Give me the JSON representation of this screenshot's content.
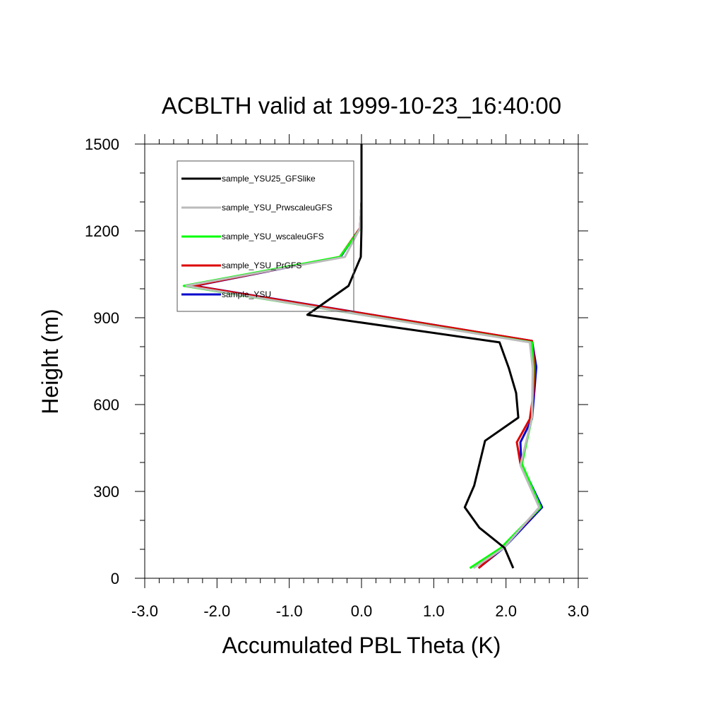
{
  "chart_data": {
    "type": "line",
    "title": "ACBLTH valid at 1999-10-23_16:40:00",
    "xlabel": "Accumulated PBL Theta (K)",
    "ylabel": "Height (m)",
    "xlim": [
      -3.0,
      3.0
    ],
    "ylim": [
      0,
      1500
    ],
    "x_ticks": [
      "-3.0",
      "-2.0",
      "-1.0",
      "0.0",
      "1.0",
      "2.0",
      "3.0"
    ],
    "y_ticks": [
      "0",
      "300",
      "600",
      "900",
      "1200",
      "1500"
    ],
    "legend_position": "top-left",
    "grid": false,
    "series": [
      {
        "name": "sample_YSU25_GFSlike",
        "color": "#000000",
        "x": [
          2.1,
          1.98,
          1.63,
          1.43,
          1.56,
          1.71,
          2.17,
          2.14,
          2.04,
          1.91,
          -0.75,
          -0.18,
          -0.01,
          0.0,
          0.0,
          0.0,
          0.0
        ],
        "y": [
          35,
          105,
          175,
          245,
          320,
          475,
          555,
          640,
          725,
          815,
          910,
          1010,
          1110,
          1210,
          1310,
          1410,
          1500
        ]
      },
      {
        "name": "sample_YSU_PrwscaleuGFS",
        "color": "#bbbbbb",
        "x": [
          1.55,
          1.97,
          2.46,
          2.2,
          2.36,
          2.37,
          2.33,
          -2.43,
          -0.23,
          -0.02,
          0.0
        ],
        "y": [
          35,
          105,
          245,
          390,
          555,
          725,
          815,
          1010,
          1110,
          1210,
          1300
        ]
      },
      {
        "name": "sample_YSU_wscaleuGFS",
        "color": "#00ff00",
        "x": [
          1.5,
          1.93,
          2.48,
          2.22,
          2.36,
          2.38,
          2.36,
          -2.46,
          -0.3,
          -0.01,
          0.0
        ],
        "y": [
          35,
          105,
          245,
          395,
          555,
          730,
          815,
          1010,
          1110,
          1210,
          1300
        ]
      },
      {
        "name": "sample_YSU_PrGFS",
        "color": "#dd0000",
        "x": [
          1.62,
          1.95,
          2.48,
          2.2,
          2.15,
          2.33,
          2.38,
          2.4,
          2.36,
          -2.33,
          -0.3,
          -0.02,
          0.0
        ],
        "y": [
          35,
          105,
          245,
          395,
          470,
          550,
          640,
          730,
          820,
          1010,
          1110,
          1210,
          1300
        ]
      },
      {
        "name": "sample_YSU",
        "color": "#0000cc",
        "x": [
          1.62,
          1.97,
          2.5,
          2.21,
          2.2,
          2.36,
          2.39,
          2.42,
          2.36,
          -2.31,
          -0.29,
          -0.02,
          0.0
        ],
        "y": [
          35,
          105,
          245,
          395,
          470,
          550,
          640,
          730,
          820,
          1010,
          1110,
          1210,
          1300
        ]
      }
    ]
  }
}
